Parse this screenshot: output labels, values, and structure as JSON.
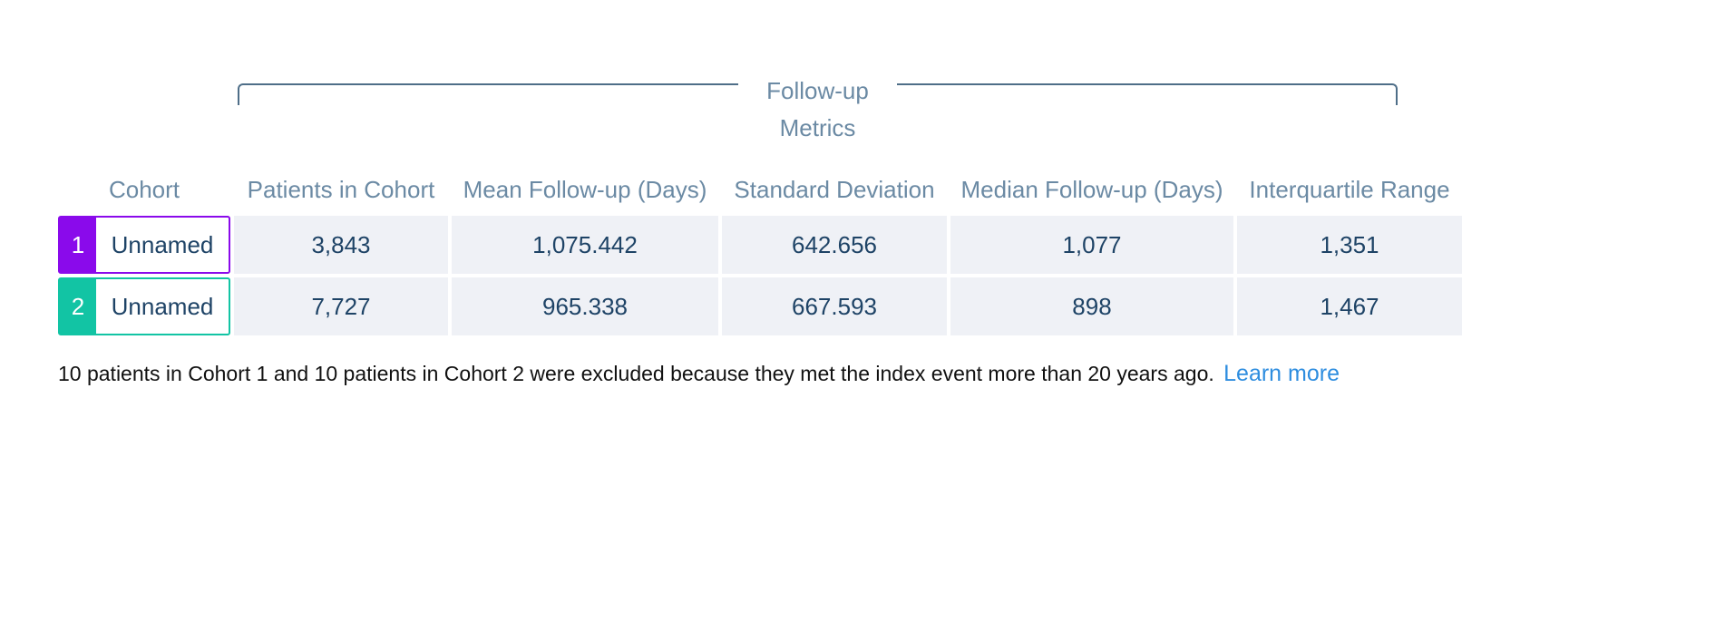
{
  "group_header": {
    "title": "Follow-up Metrics"
  },
  "columns": {
    "cohort": "Cohort",
    "patients": "Patients in Cohort",
    "mean": "Mean Follow-up (Days)",
    "sd": "Standard Deviation",
    "median": "Median Follow-up (Days)",
    "iqr": "Interquartile Range"
  },
  "rows": [
    {
      "number": "1",
      "name": "Unnamed",
      "color": "#8a0aeb",
      "patients": "3,843",
      "mean": "1,075.442",
      "sd": "642.656",
      "median": "1,077",
      "iqr": "1,351"
    },
    {
      "number": "2",
      "name": "Unnamed",
      "color": "#12c4a4",
      "patients": "7,727",
      "mean": "965.338",
      "sd": "667.593",
      "median": "898",
      "iqr": "1,467"
    }
  ],
  "footnote": {
    "text": "10 patients in Cohort 1 and 10 patients in Cohort 2 were excluded because they met the index event more than 20 years ago.",
    "link_label": "Learn more"
  },
  "colors": {
    "header_text": "#6b8aa4",
    "value_text": "#1e4366",
    "cell_bg": "#eff1f6",
    "link": "#2e8ddf"
  }
}
